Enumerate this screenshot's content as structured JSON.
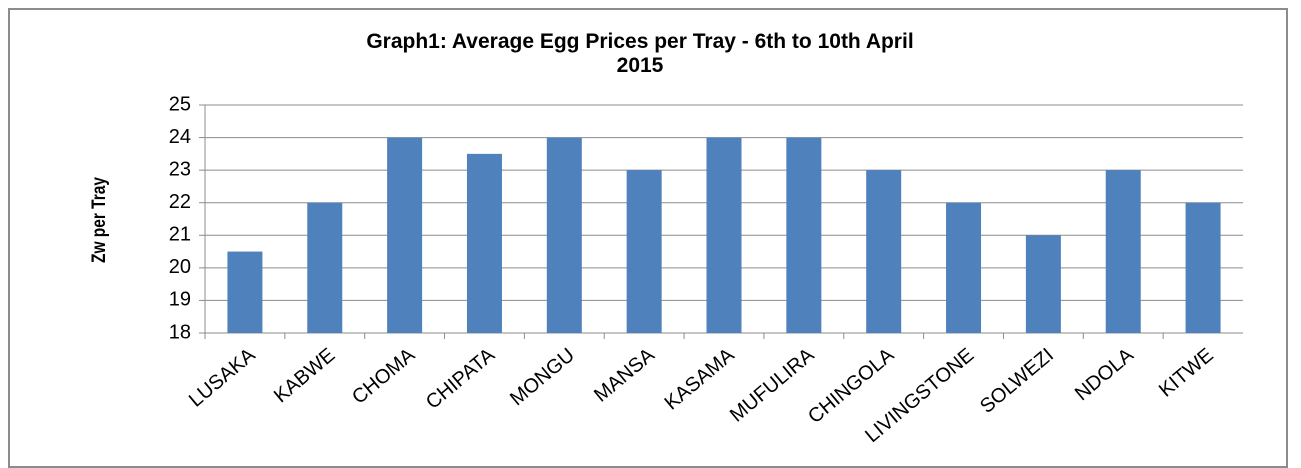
{
  "chart_data": {
    "type": "bar",
    "title": "Graph1: Average Egg Prices per Tray -  6th to 10th April 2015",
    "y_label": "Zw per Tray",
    "categories": [
      "LUSAKA",
      "KABWE",
      "CHOMA",
      "CHIPATA",
      "MONGU",
      "MANSA",
      "KASAMA",
      "MUFULIRA",
      "CHINGOLA",
      "LIVINGSTONE",
      "SOLWEZI",
      "NDOLA",
      "KITWE"
    ],
    "values": [
      20.5,
      22,
      24,
      23.5,
      24,
      23,
      24,
      24,
      23,
      22,
      21,
      23,
      22
    ],
    "color": "#4f81bd",
    "ylim": [
      18,
      25
    ],
    "yticks": [
      18,
      19,
      20,
      21,
      22,
      23,
      24,
      25
    ],
    "grid": true
  }
}
